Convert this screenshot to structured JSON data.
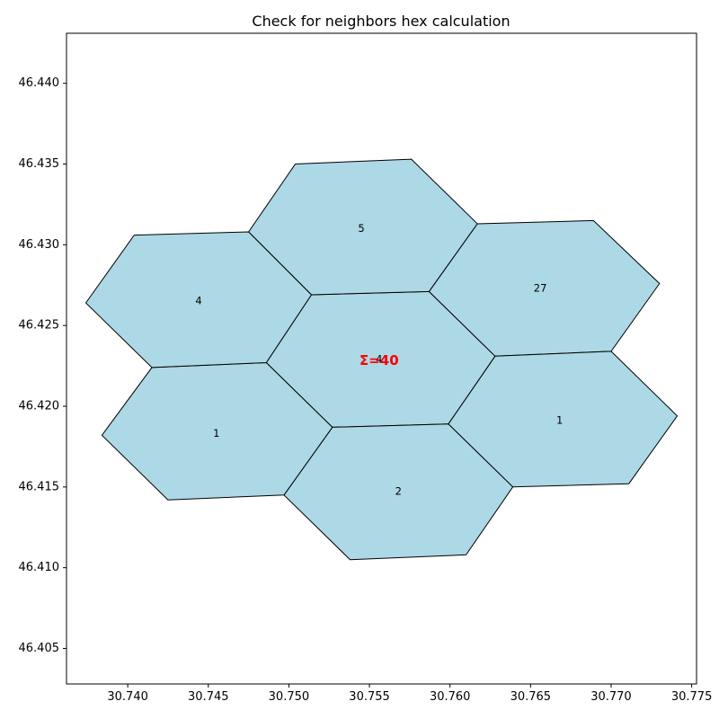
{
  "chart_data": {
    "type": "map",
    "title": "Check for neighbors hex calculation",
    "xlabel": "",
    "ylabel": "",
    "xlim": [
      30.7362,
      30.7753
    ],
    "ylim": [
      46.4028,
      46.4431
    ],
    "xticks": [
      30.74,
      30.745,
      30.75,
      30.755,
      30.76,
      30.765,
      30.77,
      30.775
    ],
    "xtick_labels": [
      "30.740",
      "30.745",
      "30.750",
      "30.755",
      "30.760",
      "30.765",
      "30.770",
      "30.775"
    ],
    "yticks": [
      46.405,
      46.41,
      46.415,
      46.42,
      46.425,
      46.43,
      46.435,
      46.44
    ],
    "ytick_labels": [
      "46.405",
      "46.410",
      "46.415",
      "46.420",
      "46.425",
      "46.430",
      "46.435",
      "46.440"
    ],
    "grid": false,
    "hex_fill_color": "#add8e6",
    "hex_edge_color": "#000000",
    "sum_color": "#ff0000",
    "hexagons": [
      {
        "name": "center",
        "label": "4",
        "label_pos": [
          30.7556,
          46.4229
        ],
        "vertices": [
          [
            30.7486,
            46.4227
          ],
          [
            30.7514,
            46.4269
          ],
          [
            30.7587,
            46.4271
          ],
          [
            30.7628,
            46.4231
          ],
          [
            30.7599,
            46.4189
          ],
          [
            30.7527,
            46.4187
          ]
        ]
      },
      {
        "name": "north",
        "label": "5",
        "label_pos": [
          30.7545,
          46.431
        ],
        "vertices": [
          [
            30.7475,
            46.4308
          ],
          [
            30.7504,
            46.435
          ],
          [
            30.7576,
            46.4353
          ],
          [
            30.7617,
            46.4313
          ],
          [
            30.7587,
            46.4271
          ],
          [
            30.7514,
            46.4269
          ]
        ]
      },
      {
        "name": "north-east",
        "label": "27",
        "label_pos": [
          30.7656,
          46.4273
        ],
        "vertices": [
          [
            30.7587,
            46.4271
          ],
          [
            30.7617,
            46.4313
          ],
          [
            30.7689,
            46.4315
          ],
          [
            30.773,
            46.4276
          ],
          [
            30.77,
            46.4234
          ],
          [
            30.7628,
            46.4231
          ]
        ]
      },
      {
        "name": "south-east",
        "label": "1",
        "label_pos": [
          30.7668,
          46.4191
        ],
        "vertices": [
          [
            30.7599,
            46.4189
          ],
          [
            30.7628,
            46.4231
          ],
          [
            30.77,
            46.4234
          ],
          [
            30.7741,
            46.4194
          ],
          [
            30.7711,
            46.4152
          ],
          [
            30.7639,
            46.415
          ]
        ]
      },
      {
        "name": "south",
        "label": "2",
        "label_pos": [
          30.7568,
          46.4147
        ],
        "vertices": [
          [
            30.7497,
            46.4145
          ],
          [
            30.7527,
            46.4187
          ],
          [
            30.7599,
            46.4189
          ],
          [
            30.7639,
            46.415
          ],
          [
            30.761,
            46.4108
          ],
          [
            30.7538,
            46.4105
          ]
        ]
      },
      {
        "name": "south-west",
        "label": "1",
        "label_pos": [
          30.7455,
          46.4183
        ],
        "vertices": [
          [
            30.7384,
            46.4182
          ],
          [
            30.7415,
            46.4224
          ],
          [
            30.7486,
            46.4227
          ],
          [
            30.7527,
            46.4187
          ],
          [
            30.7497,
            46.4145
          ],
          [
            30.7425,
            46.4142
          ]
        ]
      },
      {
        "name": "north-west",
        "label": "4",
        "label_pos": [
          30.7444,
          46.4265
        ],
        "vertices": [
          [
            30.7374,
            46.4264
          ],
          [
            30.7404,
            46.4306
          ],
          [
            30.7475,
            46.4308
          ],
          [
            30.7514,
            46.4269
          ],
          [
            30.7486,
            46.4227
          ],
          [
            30.7415,
            46.4224
          ]
        ]
      }
    ],
    "sum_text": "Σ=40",
    "sum_pos": [
      30.7556,
      46.4228
    ]
  }
}
